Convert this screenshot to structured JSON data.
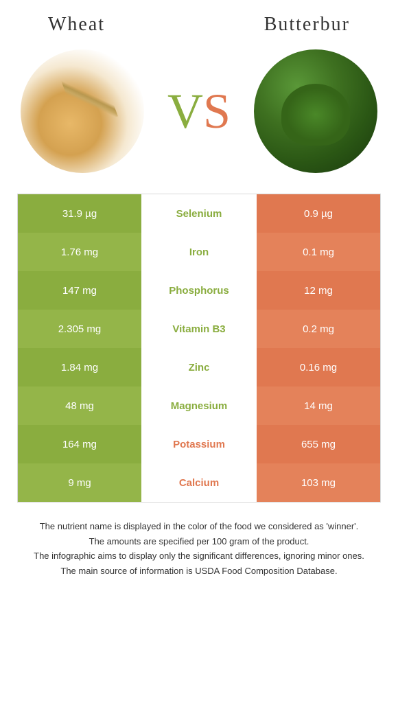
{
  "foods": {
    "left": {
      "name": "Wheat"
    },
    "right": {
      "name": "Butterbur"
    }
  },
  "vs": {
    "v": "V",
    "s": "S"
  },
  "colors": {
    "left": "#8aad3f",
    "right": "#e07850",
    "left_alt": "#94b549",
    "right_alt": "#e4825a"
  },
  "rows": [
    {
      "left": "31.9 µg",
      "nutrient": "Selenium",
      "right": "0.9 µg",
      "winner": "left"
    },
    {
      "left": "1.76 mg",
      "nutrient": "Iron",
      "right": "0.1 mg",
      "winner": "left"
    },
    {
      "left": "147 mg",
      "nutrient": "Phosphorus",
      "right": "12 mg",
      "winner": "left"
    },
    {
      "left": "2.305 mg",
      "nutrient": "Vitamin B3",
      "right": "0.2 mg",
      "winner": "left"
    },
    {
      "left": "1.84 mg",
      "nutrient": "Zinc",
      "right": "0.16 mg",
      "winner": "left"
    },
    {
      "left": "48 mg",
      "nutrient": "Magnesium",
      "right": "14 mg",
      "winner": "left"
    },
    {
      "left": "164 mg",
      "nutrient": "Potassium",
      "right": "655 mg",
      "winner": "right"
    },
    {
      "left": "9 mg",
      "nutrient": "Calcium",
      "right": "103 mg",
      "winner": "right"
    }
  ],
  "notes": [
    "The nutrient name is displayed in the color of the food we considered as 'winner'.",
    "The amounts are specified per 100 gram of the product.",
    "The infographic aims to display only the significant differences, ignoring minor ones.",
    "The main source of information is USDA Food Composition Database."
  ]
}
